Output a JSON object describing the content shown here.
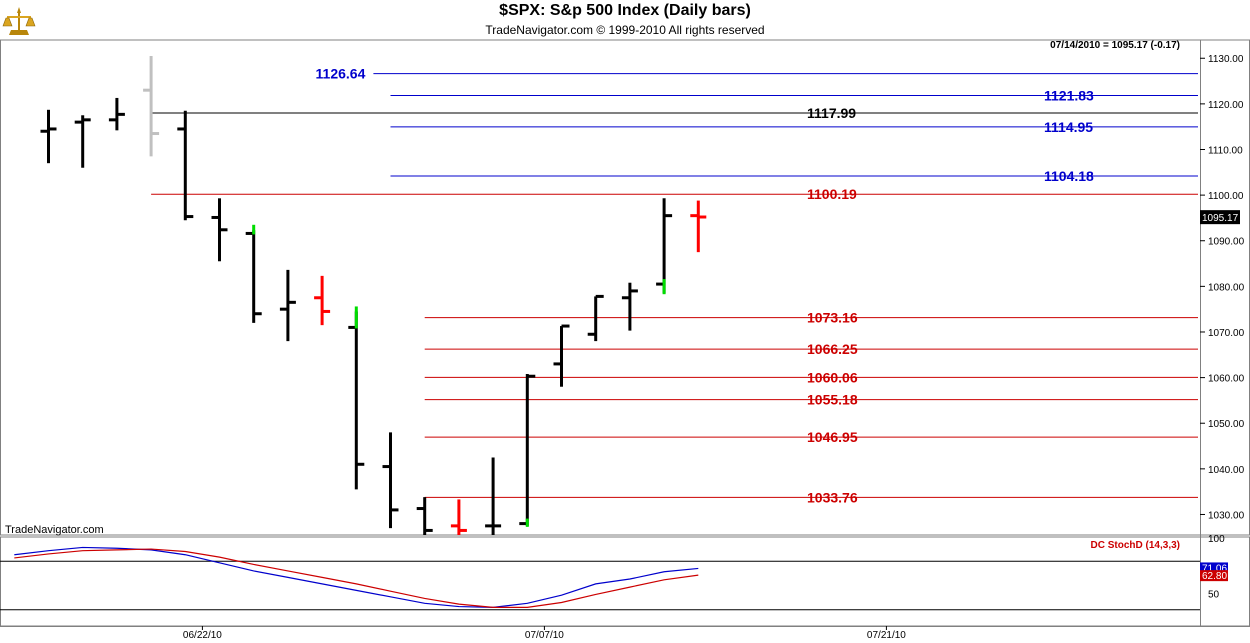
{
  "header": {
    "title": "$SPX:  S&p 500 Index  (Daily bars)",
    "subtitle": "TradeNavigator.com © 1999-2010 All rights reserved",
    "info": "07/14/2010 = 1095.17 (-0.17)",
    "watermark": "TradeNavigator.com"
  },
  "chart_data": [
    {
      "type": "bar",
      "subtype": "ohlc",
      "ylim": [
        1025.5,
        1134
      ],
      "ytick_labels": [
        "1030.00",
        "1040.00",
        "1050.00",
        "1060.00",
        "1070.00",
        "1080.00",
        "1090.00",
        "1100.00",
        "1110.00",
        "1120.00",
        "1130.00"
      ],
      "ytick_values": [
        1030,
        1040,
        1050,
        1060,
        1070,
        1080,
        1090,
        1100,
        1110,
        1120,
        1130
      ],
      "x_labels": [
        {
          "label": "06/22/10",
          "bar": 4.5
        },
        {
          "label": "07/07/10",
          "bar": 14.5
        },
        {
          "label": "07/21/10",
          "bar": 24.5
        }
      ],
      "last_price_label": "1095.17",
      "bars": [
        {
          "o": 1114,
          "h": 1118.7,
          "l": 1107,
          "c": 1114.5,
          "color": "#000000"
        },
        {
          "o": 1116,
          "h": 1117.5,
          "l": 1106,
          "c": 1116.5,
          "color": "#000000"
        },
        {
          "o": 1116.5,
          "h": 1121.3,
          "l": 1114.2,
          "c": 1117.7,
          "color": "#000000"
        },
        {
          "o": 1123,
          "h": 1130.5,
          "l": 1108.5,
          "c": 1113.5,
          "color": "#c0c0c0"
        },
        {
          "o": 1114.5,
          "h": 1118.5,
          "l": 1094.5,
          "c": 1095.3,
          "color": "#000000"
        },
        {
          "o": 1095.1,
          "h": 1099.3,
          "l": 1085.5,
          "c": 1092.4,
          "color": "#000000"
        },
        {
          "o": 1091.6,
          "h": 1092.3,
          "l": 1072,
          "c": 1074,
          "color": "#000000"
        },
        {
          "o": 1075,
          "h": 1083.6,
          "l": 1068,
          "c": 1076.5,
          "color": "#000000"
        },
        {
          "o": 1077.5,
          "h": 1082.3,
          "l": 1071.5,
          "c": 1074.5,
          "color": "#ff0000"
        },
        {
          "o": 1071,
          "h": 1074.5,
          "l": 1035.5,
          "c": 1041,
          "color": "#000000"
        },
        {
          "o": 1040.5,
          "h": 1048,
          "l": 1027,
          "c": 1031,
          "color": "#000000"
        },
        {
          "o": 1031.3,
          "h": 1033.8,
          "l": 1025.5,
          "c": 1026.5,
          "color": "#000000"
        },
        {
          "o": 1027.5,
          "h": 1033.3,
          "l": 1025.5,
          "c": 1026.5,
          "color": "#ff0000"
        },
        {
          "o": 1027.5,
          "h": 1042.5,
          "l": 1025.5,
          "c": 1027.5,
          "color": "#000000"
        },
        {
          "o": 1028,
          "h": 1060.8,
          "l": 1027.5,
          "c": 1060.3,
          "color": "#000000"
        },
        {
          "o": 1063,
          "h": 1071.3,
          "l": 1058,
          "c": 1071.3,
          "color": "#000000"
        },
        {
          "o": 1069.5,
          "h": 1077.8,
          "l": 1068,
          "c": 1077.8,
          "color": "#000000"
        },
        {
          "o": 1077.5,
          "h": 1080.8,
          "l": 1070.3,
          "c": 1079,
          "color": "#000000"
        },
        {
          "o": 1080.5,
          "h": 1099.3,
          "l": 1078.5,
          "c": 1095.5,
          "color": "#000000"
        },
        {
          "o": 1095.5,
          "h": 1098.8,
          "l": 1087.5,
          "c": 1095.2,
          "color": "#ff0000"
        }
      ],
      "green_marks": [
        {
          "bar": 6,
          "y1": 1092.4,
          "y2": 1091.6
        },
        {
          "bar": 9,
          "y1": 1074.5,
          "y2": 1071
        },
        {
          "bar": 14,
          "y1": 1028,
          "y2": 1027.5
        },
        {
          "bar": 18,
          "y1": 1080.5,
          "y2": 1078.5
        }
      ],
      "levels": [
        {
          "value": 1126.64,
          "label": "1126.64",
          "color": "#0000cc",
          "x_from_bar": 9.5,
          "label_side": "left"
        },
        {
          "value": 1121.83,
          "label": "1121.83",
          "color": "#0000cc",
          "x_from_bar": 10,
          "label_side": "right"
        },
        {
          "value": 1117.99,
          "label": "1117.99",
          "color": "#000000",
          "x_from_bar": 3,
          "label_side": "mid"
        },
        {
          "value": 1114.95,
          "label": "1114.95",
          "color": "#0000cc",
          "x_from_bar": 10,
          "label_side": "right"
        },
        {
          "value": 1104.18,
          "label": "1104.18",
          "color": "#0000cc",
          "x_from_bar": 10,
          "label_side": "right"
        },
        {
          "value": 1100.19,
          "label": "1100.19",
          "color": "#cc0000",
          "x_from_bar": 3,
          "label_side": "mid"
        },
        {
          "value": 1073.16,
          "label": "1073.16",
          "color": "#cc0000",
          "x_from_bar": 11,
          "label_side": "mid"
        },
        {
          "value": 1066.25,
          "label": "1066.25",
          "color": "#cc0000",
          "x_from_bar": 11,
          "label_side": "mid"
        },
        {
          "value": 1060.06,
          "label": "1060.06",
          "color": "#cc0000",
          "x_from_bar": 11,
          "label_side": "mid"
        },
        {
          "value": 1055.18,
          "label": "1055.18",
          "color": "#cc0000",
          "x_from_bar": 11,
          "label_side": "mid"
        },
        {
          "value": 1046.95,
          "label": "1046.95",
          "color": "#cc0000",
          "x_from_bar": 11,
          "label_side": "mid"
        },
        {
          "value": 1033.76,
          "label": "1033.76",
          "color": "#cc0000",
          "x_from_bar": 11,
          "label_side": "mid"
        }
      ]
    },
    {
      "type": "line",
      "title": "DC StochD (14,3,3)",
      "ylim": [
        0,
        100
      ],
      "ytick_labels": [
        "100",
        "50"
      ],
      "ytick_values": [
        100,
        50
      ],
      "hlines": [
        80,
        20
      ],
      "value_labels": [
        "71.06",
        "62.80"
      ],
      "series": [
        {
          "color": "#0000cc",
          "values": [
            [
              -1,
              88
            ],
            [
              0,
              93
            ],
            [
              1,
              97
            ],
            [
              2,
              96
            ],
            [
              3,
              94
            ],
            [
              4,
              88
            ],
            [
              5,
              78
            ],
            [
              6,
              68
            ],
            [
              7,
              60
            ],
            [
              8,
              52
            ],
            [
              9,
              44
            ],
            [
              10,
              36
            ],
            [
              11,
              28
            ],
            [
              12,
              24
            ],
            [
              13,
              23
            ],
            [
              14,
              28
            ],
            [
              15,
              38
            ],
            [
              16,
              52
            ],
            [
              17,
              58
            ],
            [
              18,
              67
            ],
            [
              19,
              71.06
            ]
          ]
        },
        {
          "color": "#cc0000",
          "values": [
            [
              -1,
              84
            ],
            [
              0,
              89
            ],
            [
              1,
              93
            ],
            [
              2,
              94
            ],
            [
              3,
              95
            ],
            [
              4,
              92
            ],
            [
              5,
              85
            ],
            [
              6,
              76
            ],
            [
              7,
              68
            ],
            [
              8,
              60
            ],
            [
              9,
              52
            ],
            [
              10,
              43
            ],
            [
              11,
              34
            ],
            [
              12,
              27
            ],
            [
              13,
              23
            ],
            [
              14,
              23
            ],
            [
              15,
              29
            ],
            [
              16,
              39
            ],
            [
              17,
              48
            ],
            [
              18,
              57
            ],
            [
              19,
              62.8
            ]
          ]
        }
      ]
    }
  ]
}
